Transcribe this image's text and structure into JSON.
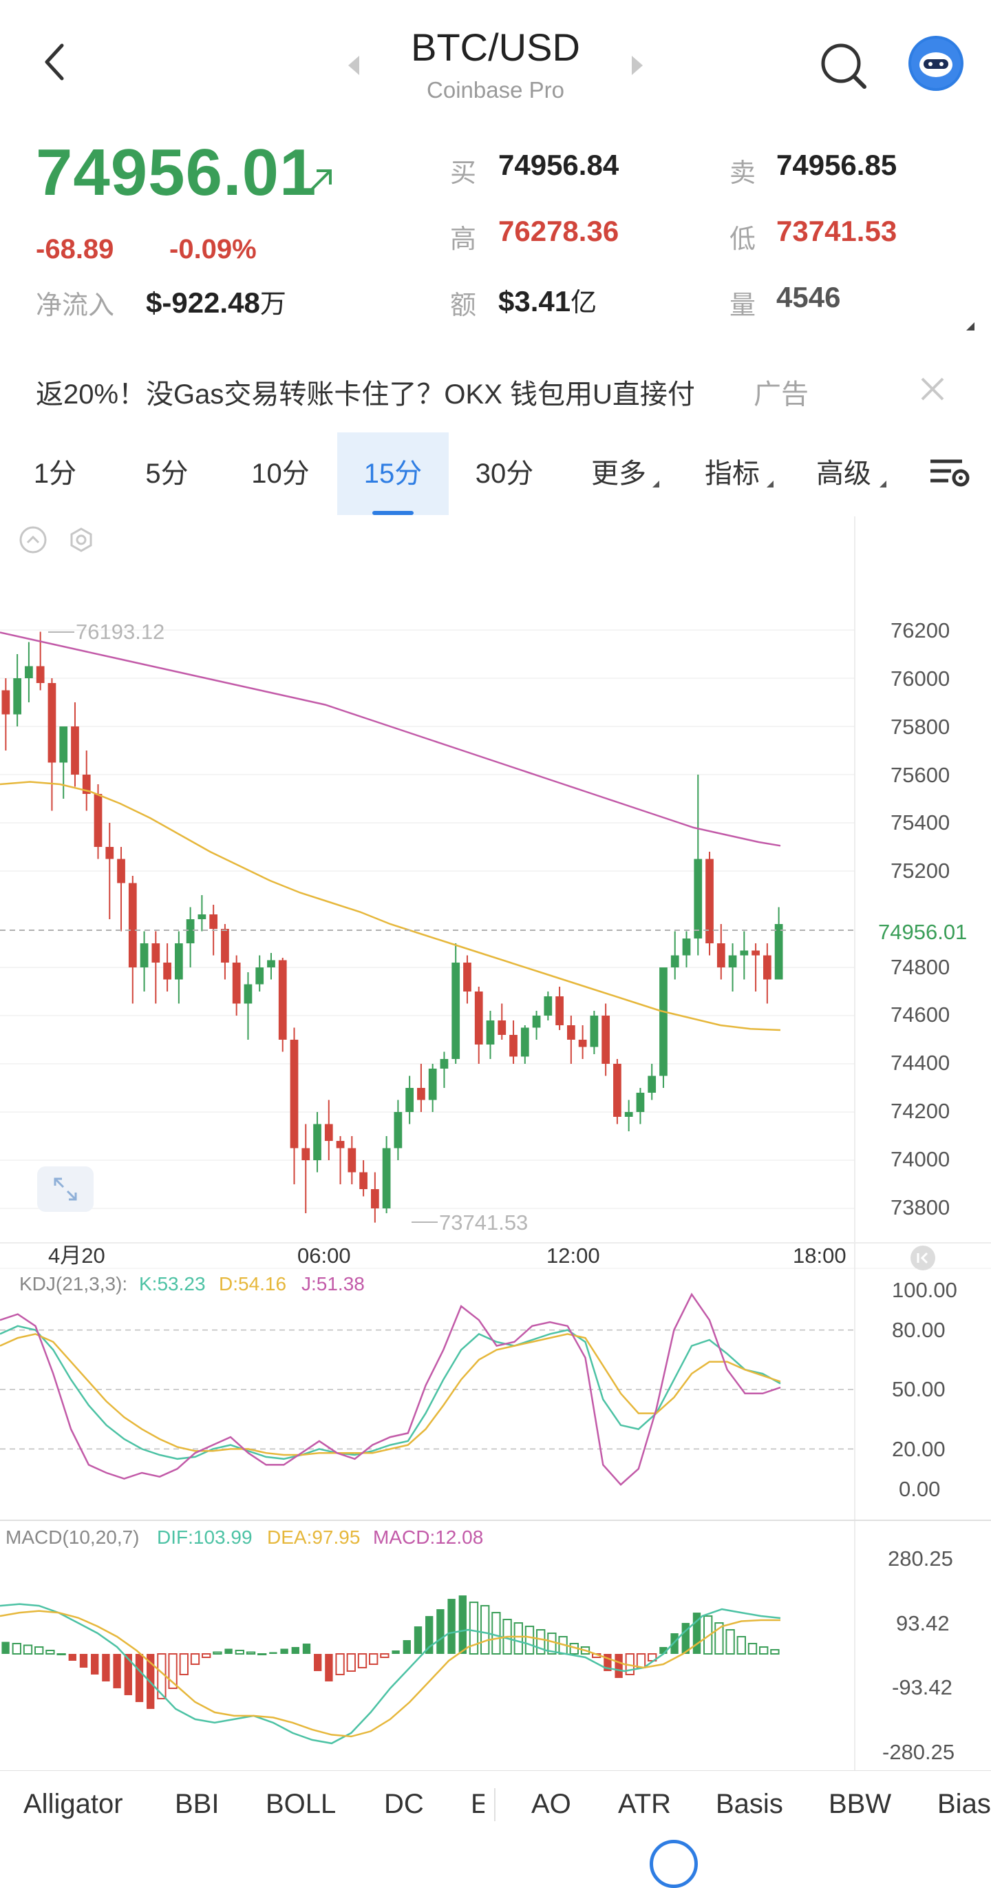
{
  "header": {
    "title": "BTC/USD",
    "subtitle": "Coinbase Pro"
  },
  "price": {
    "last": "74956.01",
    "change": "-68.89",
    "change_pct": "-0.09%",
    "net_inflow_label": "净流入",
    "net_inflow_value": "$-922.48",
    "net_inflow_unit": "万"
  },
  "stats": {
    "buy_label": "买",
    "buy_value": "74956.84",
    "sell_label": "卖",
    "sell_value": "74956.85",
    "high_label": "高",
    "high_value": "76278.36",
    "low_label": "低",
    "low_value": "73741.53",
    "amount_label": "额",
    "amount_value": "$3.41",
    "amount_unit": "亿",
    "volume_label": "量",
    "volume_value": "4546"
  },
  "ad": {
    "text": "返20%！没Gas交易转账卡住了？OKX 钱包用U直接付",
    "tag": "广告"
  },
  "tabs": [
    {
      "label": "1分"
    },
    {
      "label": "5分"
    },
    {
      "label": "10分"
    },
    {
      "label": "15分"
    },
    {
      "label": "30分"
    },
    {
      "label": "更多"
    },
    {
      "label": "指标"
    },
    {
      "label": "高级"
    }
  ],
  "active_tab": "15分",
  "chart_data": {
    "type": "candlestick",
    "price_axis": [
      "76200",
      "76000",
      "75800",
      "75600",
      "75400",
      "75200",
      "74800",
      "74600",
      "74400",
      "74200",
      "74000",
      "73800"
    ],
    "current_price_label": "74956.01",
    "high_marker": "76193.12",
    "low_marker": "73741.53",
    "time_axis": [
      "4月20",
      "06:00",
      "12:00",
      "18:00"
    ],
    "ylim": [
      73700,
      76300
    ],
    "ohlc": [
      [
        75950,
        76000,
        75700,
        75850
      ],
      [
        75850,
        76100,
        75800,
        76000
      ],
      [
        76000,
        76150,
        75900,
        76050
      ],
      [
        76050,
        76193,
        75950,
        75980
      ],
      [
        75980,
        76000,
        75450,
        75650
      ],
      [
        75650,
        75800,
        75500,
        75800
      ],
      [
        75800,
        75900,
        75550,
        75600
      ],
      [
        75600,
        75700,
        75450,
        75520
      ],
      [
        75520,
        75560,
        75250,
        75300
      ],
      [
        75300,
        75400,
        75000,
        75250
      ],
      [
        75250,
        75300,
        74950,
        75150
      ],
      [
        75150,
        75180,
        74650,
        74800
      ],
      [
        74800,
        74950,
        74700,
        74900
      ],
      [
        74900,
        74950,
        74650,
        74820
      ],
      [
        74820,
        74900,
        74700,
        74750
      ],
      [
        74750,
        74950,
        74650,
        74900
      ],
      [
        74900,
        75050,
        74800,
        75000
      ],
      [
        75000,
        75100,
        74950,
        75020
      ],
      [
        75020,
        75060,
        74850,
        74960
      ],
      [
        74960,
        74980,
        74750,
        74820
      ],
      [
        74820,
        74850,
        74600,
        74650
      ],
      [
        74650,
        74780,
        74500,
        74730
      ],
      [
        74730,
        74850,
        74700,
        74800
      ],
      [
        74800,
        74860,
        74750,
        74830
      ],
      [
        74830,
        74840,
        74450,
        74500
      ],
      [
        74500,
        74550,
        73900,
        74050
      ],
      [
        74050,
        74150,
        73780,
        74000
      ],
      [
        74000,
        74200,
        73950,
        74150
      ],
      [
        74150,
        74250,
        74000,
        74080
      ],
      [
        74080,
        74100,
        73900,
        74050
      ],
      [
        74050,
        74100,
        73900,
        73950
      ],
      [
        73950,
        74000,
        73850,
        73880
      ],
      [
        73880,
        73950,
        73741,
        73800
      ],
      [
        73800,
        74100,
        73780,
        74050
      ],
      [
        74050,
        74250,
        74000,
        74200
      ],
      [
        74200,
        74350,
        74150,
        74300
      ],
      [
        74300,
        74400,
        74200,
        74250
      ],
      [
        74250,
        74400,
        74200,
        74380
      ],
      [
        74380,
        74450,
        74300,
        74420
      ],
      [
        74420,
        74900,
        74400,
        74820
      ],
      [
        74820,
        74850,
        74650,
        74700
      ],
      [
        74700,
        74720,
        74400,
        74480
      ],
      [
        74480,
        74620,
        74420,
        74580
      ],
      [
        74580,
        74650,
        74500,
        74520
      ],
      [
        74520,
        74580,
        74400,
        74430
      ],
      [
        74430,
        74560,
        74400,
        74550
      ],
      [
        74550,
        74620,
        74500,
        74600
      ],
      [
        74600,
        74700,
        74580,
        74680
      ],
      [
        74680,
        74720,
        74540,
        74560
      ],
      [
        74560,
        74600,
        74400,
        74500
      ],
      [
        74500,
        74560,
        74420,
        74470
      ],
      [
        74470,
        74620,
        74440,
        74600
      ],
      [
        74600,
        74650,
        74350,
        74400
      ],
      [
        74400,
        74420,
        74150,
        74180
      ],
      [
        74180,
        74250,
        74120,
        74200
      ],
      [
        74200,
        74300,
        74150,
        74280
      ],
      [
        74280,
        74400,
        74250,
        74350
      ],
      [
        74350,
        74800,
        74300,
        74800
      ],
      [
        74800,
        74950,
        74750,
        74850
      ],
      [
        74850,
        74950,
        74800,
        74920
      ],
      [
        74920,
        75600,
        74850,
        75250
      ],
      [
        75250,
        75280,
        74850,
        74900
      ],
      [
        74900,
        74980,
        74750,
        74800
      ],
      [
        74800,
        74900,
        74700,
        74850
      ],
      [
        74850,
        74950,
        74750,
        74870
      ],
      [
        74870,
        74900,
        74700,
        74850
      ],
      [
        74850,
        74900,
        74650,
        74750
      ],
      [
        74750,
        75050,
        74750,
        74980
      ]
    ],
    "ma_slow": [
      76190,
      76170,
      76150,
      76130,
      76110,
      76090,
      76070,
      76050,
      76030,
      76010,
      75990,
      75970,
      75950,
      75930,
      75910,
      75890,
      75860,
      75830,
      75800,
      75770,
      75740,
      75710,
      75680,
      75650,
      75620,
      75590,
      75560,
      75530,
      75500,
      75470,
      75440,
      75410,
      75380,
      75360,
      75340,
      75320,
      75305
    ],
    "ma_fast": [
      75560,
      75570,
      75560,
      75530,
      75480,
      75420,
      75350,
      75280,
      75220,
      75160,
      75110,
      75070,
      75030,
      74980,
      74940,
      74900,
      74860,
      74820,
      74780,
      74740,
      74700,
      74660,
      74620,
      74590,
      74560,
      74545,
      74540
    ]
  },
  "kdj": {
    "label": "KDJ(21,3,3):",
    "k": "K:53.23",
    "d": "D:54.16",
    "j": "J:51.38",
    "axis": [
      "100.00",
      "80.00",
      "50.00",
      "20.00",
      "0.00"
    ],
    "k_series": [
      78,
      82,
      80,
      70,
      55,
      42,
      32,
      25,
      20,
      17,
      15,
      16,
      20,
      22,
      19,
      16,
      15,
      17,
      20,
      18,
      17,
      19,
      22,
      24,
      38,
      55,
      70,
      78,
      74,
      72,
      75,
      78,
      80,
      74,
      45,
      32,
      30,
      38,
      55,
      72,
      75,
      68,
      60,
      58,
      53
    ],
    "d_series": [
      72,
      76,
      78,
      74,
      64,
      54,
      44,
      36,
      30,
      25,
      21,
      19,
      19,
      20,
      20,
      18,
      17,
      17,
      18,
      18,
      18,
      18,
      20,
      22,
      30,
      42,
      55,
      65,
      70,
      72,
      74,
      76,
      78,
      76,
      62,
      48,
      38,
      38,
      46,
      58,
      64,
      64,
      60,
      57,
      54
    ],
    "j_series": [
      85,
      88,
      82,
      58,
      30,
      12,
      8,
      5,
      8,
      6,
      10,
      18,
      22,
      26,
      18,
      12,
      12,
      18,
      24,
      18,
      15,
      22,
      26,
      28,
      52,
      70,
      92,
      85,
      72,
      74,
      82,
      84,
      82,
      66,
      12,
      2,
      10,
      40,
      80,
      98,
      85,
      60,
      48,
      48,
      51
    ]
  },
  "macd": {
    "label": "MACD(10,20,7)",
    "dif": "DIF:103.99",
    "dea": "DEA:97.95",
    "macd": "MACD:12.08",
    "axis": [
      "280.25",
      "93.42",
      "-93.42",
      "-280.25"
    ],
    "hist": [
      35,
      30,
      25,
      20,
      10,
      0,
      -20,
      -40,
      -60,
      -80,
      -100,
      -120,
      -140,
      -160,
      -130,
      -100,
      -60,
      -30,
      -10,
      5,
      15,
      10,
      5,
      0,
      5,
      15,
      20,
      30,
      -50,
      -80,
      -60,
      -50,
      -40,
      -30,
      -10,
      10,
      40,
      80,
      110,
      130,
      160,
      170,
      150,
      140,
      120,
      100,
      90,
      80,
      70,
      60,
      50,
      30,
      20,
      -10,
      -50,
      -70,
      -60,
      -40,
      -20,
      20,
      60,
      90,
      120,
      110,
      90,
      70,
      50,
      30,
      20,
      12
    ],
    "dif_series": [
      140,
      145,
      140,
      120,
      90,
      60,
      20,
      -40,
      -100,
      -160,
      -190,
      -200,
      -190,
      -180,
      -200,
      -230,
      -250,
      -260,
      -230,
      -170,
      -100,
      -40,
      20,
      60,
      70,
      60,
      45,
      30,
      10,
      0,
      -10,
      -40,
      -50,
      -40,
      0,
      60,
      110,
      130,
      120,
      110,
      104
    ],
    "dea_series": [
      110,
      120,
      125,
      120,
      105,
      80,
      50,
      10,
      -40,
      -90,
      -140,
      -170,
      -180,
      -180,
      -185,
      -200,
      -220,
      -235,
      -240,
      -225,
      -190,
      -140,
      -80,
      -20,
      20,
      40,
      50,
      50,
      40,
      25,
      10,
      -10,
      -30,
      -40,
      -30,
      0,
      40,
      80,
      95,
      98,
      98
    ]
  },
  "indicators": [
    "Alligator",
    "BBI",
    "BOLL",
    "DC",
    "E",
    "AO",
    "ATR",
    "Basis",
    "BBW",
    "Bias"
  ],
  "colors": {
    "up": "#3a9e58",
    "down": "#d1453b",
    "accent": "#2e7de3",
    "ma_slow": "#c25aa8",
    "ma_fast": "#e6b73b",
    "k": "#4cc2a4",
    "d": "#e6b73b",
    "j": "#c25aa8"
  }
}
